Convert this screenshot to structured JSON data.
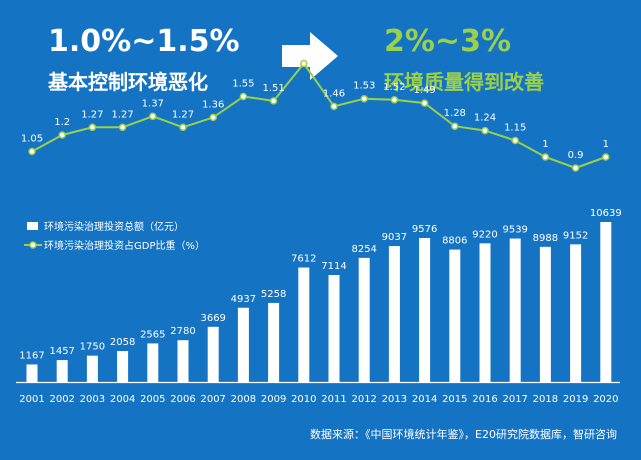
{
  "header": {
    "left_big": "1.0%~1.5%",
    "left_sub": "基本控制环境恶化",
    "right_big": "2%~3%",
    "right_sub": "环境质量得到改善"
  },
  "colors": {
    "background": "#1573c4",
    "bars": "#ffffff",
    "line": "#9ad04a",
    "headline_accent": "#9ad04a"
  },
  "source": "数据来源：《中国环境统计年鉴》，E20研究院数据库，智研咨询",
  "chart_data": {
    "type": "bar",
    "categories": [
      "2001",
      "2002",
      "2003",
      "2004",
      "2005",
      "2006",
      "2007",
      "2008",
      "2009",
      "2010",
      "2011",
      "2012",
      "2013",
      "2014",
      "2015",
      "2016",
      "2017",
      "2018",
      "2019",
      "2020"
    ],
    "series": [
      {
        "name": "环境污染治理投资总额（亿元）",
        "type": "bar",
        "values": [
          1167,
          1457,
          1750,
          2058,
          2565,
          2780,
          3669,
          4937,
          5258,
          7612,
          7114,
          8254,
          9037,
          9576,
          8806,
          9220,
          9539,
          8988,
          9152,
          10639
        ]
      },
      {
        "name": "环境污染治理投资占GDP比重（%）",
        "type": "line",
        "values": [
          1.05,
          1.2,
          1.27,
          1.27,
          1.37,
          1.27,
          1.36,
          1.55,
          1.51,
          1.85,
          1.46,
          1.53,
          1.52,
          1.49,
          1.28,
          1.24,
          1.15,
          1.0,
          0.9,
          1.0
        ]
      }
    ],
    "legend": "top-left",
    "grid": false
  }
}
